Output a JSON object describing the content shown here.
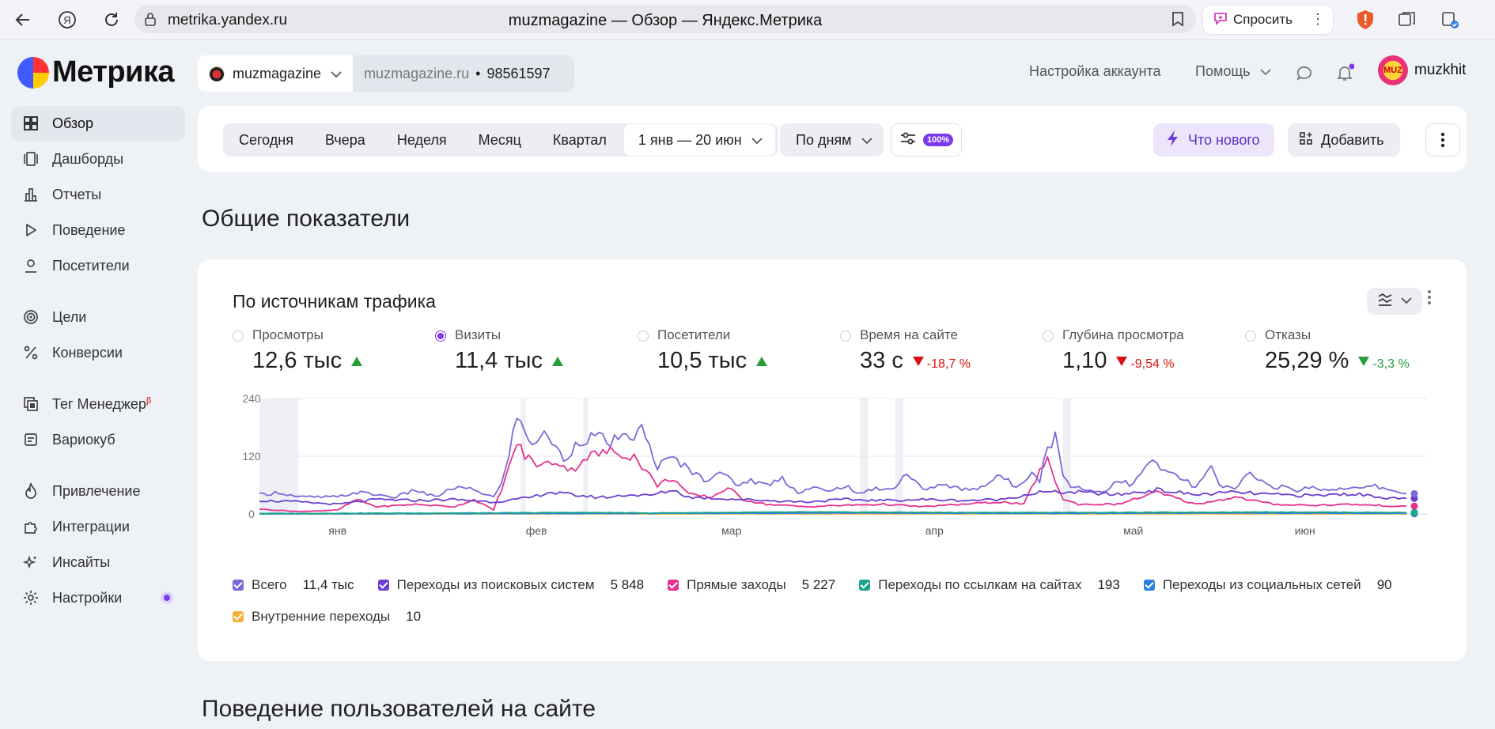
{
  "browser": {
    "url": "metrika.yandex.ru",
    "title": "muzmagazine — Обзор — Яндекс.Метрика",
    "ask_label": "Спросить"
  },
  "app": {
    "logo_text": "Метрика",
    "counter_name": "muzmagazine",
    "counter_site": "muzmagazine.ru",
    "counter_separator": "•",
    "counter_id": "98561597",
    "account_settings": "Настройка аккаунта",
    "help": "Помощь",
    "user_name": "muzkhit",
    "avatar_text": "MUZ"
  },
  "sidebar": {
    "items": [
      {
        "label": "Обзор",
        "icon": "grid-icon",
        "active": true
      },
      {
        "label": "Дашборды",
        "icon": "dashboards-icon"
      },
      {
        "label": "Отчеты",
        "icon": "bar-chart-icon"
      },
      {
        "label": "Поведение",
        "icon": "play-icon"
      },
      {
        "label": "Посетители",
        "icon": "user-icon"
      },
      {
        "label": "Цели",
        "icon": "target-icon"
      },
      {
        "label": "Конверсии",
        "icon": "percent-icon"
      },
      {
        "label": "Тег Менеджер",
        "sup": "β",
        "icon": "tag-manager-icon"
      },
      {
        "label": "Вариокуб",
        "icon": "variocube-icon"
      },
      {
        "label": "Привлечение",
        "icon": "flame-icon"
      },
      {
        "label": "Интеграции",
        "icon": "puzzle-icon"
      },
      {
        "label": "Инсайты",
        "icon": "sparkles-icon"
      },
      {
        "label": "Настройки",
        "icon": "gear-icon",
        "dot": true
      }
    ]
  },
  "period": {
    "presets": [
      "Сегодня",
      "Вчера",
      "Неделя",
      "Месяц",
      "Квартал"
    ],
    "range": "1 янв — 20 июн",
    "grouping": "По дням",
    "sampling": "100%",
    "whats_new": "Что нового",
    "add": "Добавить"
  },
  "sections": {
    "overview": "Общие показатели",
    "behavior": "Поведение пользователей на сайте"
  },
  "traffic": {
    "title": "По источникам трафика",
    "metrics": [
      {
        "label": "Просмотры",
        "value": "12,6 тыс",
        "trend": "up"
      },
      {
        "label": "Визиты",
        "value": "11,4 тыс",
        "trend": "up",
        "selected": true
      },
      {
        "label": "Посетители",
        "value": "10,5 тыс",
        "trend": "up"
      },
      {
        "label": "Время на сайте",
        "value": "33 с",
        "trend": "down",
        "delta": "-18,7 %"
      },
      {
        "label": "Глубина просмотра",
        "value": "1,10",
        "trend": "down",
        "delta": "-9,54 %"
      },
      {
        "label": "Отказы",
        "value": "25,29 %",
        "trend": "down-good",
        "delta": "-3,3 %"
      }
    ],
    "legend": [
      {
        "label": "Всего",
        "value": "11,4 тыс",
        "color": "#7b68d8"
      },
      {
        "label": "Переходы из поисковых систем",
        "value": "5 848",
        "color": "#6a3fd0"
      },
      {
        "label": "Прямые заходы",
        "value": "5 227",
        "color": "#e6318e"
      },
      {
        "label": "Переходы по ссылкам на сайтах",
        "value": "193",
        "color": "#1aa58a"
      },
      {
        "label": "Переходы из социальных сетей",
        "value": "90",
        "color": "#2f7fe0"
      },
      {
        "label": "Внутренние переходы",
        "value": "10",
        "color": "#f4b13c"
      }
    ]
  },
  "chart_data": {
    "type": "line",
    "x_ticks": [
      "янв",
      "фев",
      "мар",
      "апр",
      "май",
      "июн"
    ],
    "y_ticks": [
      0,
      120,
      240
    ],
    "ylim": [
      0,
      240
    ],
    "x_domain": "1 янв — 20 июн (171 дней)",
    "weekend_bands_days": [
      [
        0,
        10
      ],
      [
        67,
        68
      ],
      [
        83,
        84
      ],
      [
        154,
        156
      ],
      [
        163,
        165
      ],
      [
        206,
        208
      ]
    ],
    "series": [
      {
        "name": "Всего",
        "color": "#7b68d8",
        "anchors": [
          [
            0,
            40
          ],
          [
            5,
            45
          ],
          [
            10,
            35
          ],
          [
            20,
            35
          ],
          [
            25,
            45
          ],
          [
            30,
            40
          ],
          [
            35,
            35
          ],
          [
            40,
            50
          ],
          [
            45,
            35
          ],
          [
            50,
            55
          ],
          [
            55,
            50
          ],
          [
            60,
            35
          ],
          [
            62,
            60
          ],
          [
            64,
            130
          ],
          [
            66,
            200
          ],
          [
            68,
            170
          ],
          [
            70,
            150
          ],
          [
            74,
            165
          ],
          [
            78,
            110
          ],
          [
            82,
            155
          ],
          [
            86,
            160
          ],
          [
            90,
            150
          ],
          [
            94,
            155
          ],
          [
            98,
            175
          ],
          [
            102,
            100
          ],
          [
            106,
            115
          ],
          [
            110,
            95
          ],
          [
            114,
            70
          ],
          [
            118,
            90
          ],
          [
            122,
            60
          ],
          [
            126,
            70
          ],
          [
            130,
            60
          ],
          [
            134,
            75
          ],
          [
            138,
            45
          ],
          [
            142,
            55
          ],
          [
            146,
            45
          ],
          [
            150,
            60
          ],
          [
            154,
            40
          ],
          [
            158,
            55
          ],
          [
            162,
            50
          ],
          [
            166,
            85
          ],
          [
            170,
            50
          ],
          [
            174,
            60
          ],
          [
            178,
            55
          ],
          [
            182,
            50
          ],
          [
            186,
            60
          ],
          [
            190,
            80
          ],
          [
            194,
            55
          ],
          [
            198,
            90
          ],
          [
            200,
            70
          ],
          [
            202,
            140
          ],
          [
            204,
            160
          ],
          [
            206,
            80
          ],
          [
            208,
            60
          ],
          [
            212,
            50
          ],
          [
            216,
            45
          ],
          [
            220,
            70
          ],
          [
            224,
            60
          ],
          [
            228,
            110
          ],
          [
            232,
            90
          ],
          [
            236,
            75
          ],
          [
            240,
            55
          ],
          [
            244,
            95
          ],
          [
            246,
            60
          ],
          [
            250,
            50
          ],
          [
            254,
            90
          ],
          [
            258,
            60
          ],
          [
            262,
            55
          ],
          [
            266,
            50
          ],
          [
            270,
            55
          ],
          [
            274,
            50
          ],
          [
            278,
            55
          ],
          [
            282,
            52
          ],
          [
            286,
            58
          ],
          [
            290,
            50
          ],
          [
            294,
            42
          ]
        ]
      },
      {
        "name": "Переходы из поисковых систем",
        "color": "#6a3fd0",
        "anchors": [
          [
            0,
            28
          ],
          [
            10,
            25
          ],
          [
            20,
            20
          ],
          [
            30,
            30
          ],
          [
            40,
            28
          ],
          [
            50,
            30
          ],
          [
            60,
            25
          ],
          [
            66,
            30
          ],
          [
            70,
            35
          ],
          [
            74,
            45
          ],
          [
            80,
            40
          ],
          [
            86,
            35
          ],
          [
            90,
            35
          ],
          [
            94,
            40
          ],
          [
            100,
            38
          ],
          [
            106,
            50
          ],
          [
            110,
            35
          ],
          [
            118,
            32
          ],
          [
            130,
            28
          ],
          [
            140,
            25
          ],
          [
            150,
            30
          ],
          [
            160,
            28
          ],
          [
            170,
            30
          ],
          [
            180,
            28
          ],
          [
            190,
            30
          ],
          [
            200,
            45
          ],
          [
            210,
            45
          ],
          [
            220,
            40
          ],
          [
            230,
            50
          ],
          [
            240,
            40
          ],
          [
            250,
            45
          ],
          [
            260,
            40
          ],
          [
            270,
            38
          ],
          [
            280,
            42
          ],
          [
            294,
            30
          ]
        ]
      },
      {
        "name": "Прямые заходы",
        "color": "#e6318e",
        "anchors": [
          [
            0,
            10
          ],
          [
            10,
            5
          ],
          [
            20,
            8
          ],
          [
            25,
            30
          ],
          [
            30,
            15
          ],
          [
            40,
            20
          ],
          [
            50,
            15
          ],
          [
            55,
            30
          ],
          [
            60,
            8
          ],
          [
            64,
            95
          ],
          [
            66,
            150
          ],
          [
            68,
            120
          ],
          [
            72,
            100
          ],
          [
            76,
            110
          ],
          [
            80,
            90
          ],
          [
            84,
            120
          ],
          [
            90,
            130
          ],
          [
            96,
            120
          ],
          [
            102,
            60
          ],
          [
            106,
            75
          ],
          [
            110,
            40
          ],
          [
            116,
            35
          ],
          [
            120,
            55
          ],
          [
            124,
            30
          ],
          [
            130,
            20
          ],
          [
            140,
            15
          ],
          [
            150,
            18
          ],
          [
            160,
            20
          ],
          [
            170,
            15
          ],
          [
            180,
            20
          ],
          [
            190,
            25
          ],
          [
            196,
            20
          ],
          [
            200,
            90
          ],
          [
            202,
            110
          ],
          [
            206,
            30
          ],
          [
            210,
            20
          ],
          [
            220,
            20
          ],
          [
            230,
            45
          ],
          [
            240,
            20
          ],
          [
            250,
            35
          ],
          [
            260,
            20
          ],
          [
            270,
            18
          ],
          [
            280,
            20
          ],
          [
            294,
            15
          ]
        ]
      },
      {
        "name": "Переходы по ссылкам на сайтах",
        "color": "#1aa58a",
        "anchors": [
          [
            0,
            1
          ],
          [
            60,
            2
          ],
          [
            80,
            3
          ],
          [
            100,
            2
          ],
          [
            140,
            4
          ],
          [
            180,
            3
          ],
          [
            220,
            3
          ],
          [
            260,
            4
          ],
          [
            294,
            3
          ]
        ]
      },
      {
        "name": "Переходы из социальных сетей",
        "color": "#2f7fe0",
        "anchors": [
          [
            0,
            0
          ],
          [
            100,
            1
          ],
          [
            150,
            2
          ],
          [
            200,
            1
          ],
          [
            250,
            2
          ],
          [
            294,
            1
          ]
        ]
      },
      {
        "name": "Внутренние переходы",
        "color": "#f4b13c",
        "anchors": [
          [
            0,
            0
          ],
          [
            294,
            0
          ]
        ]
      }
    ]
  }
}
